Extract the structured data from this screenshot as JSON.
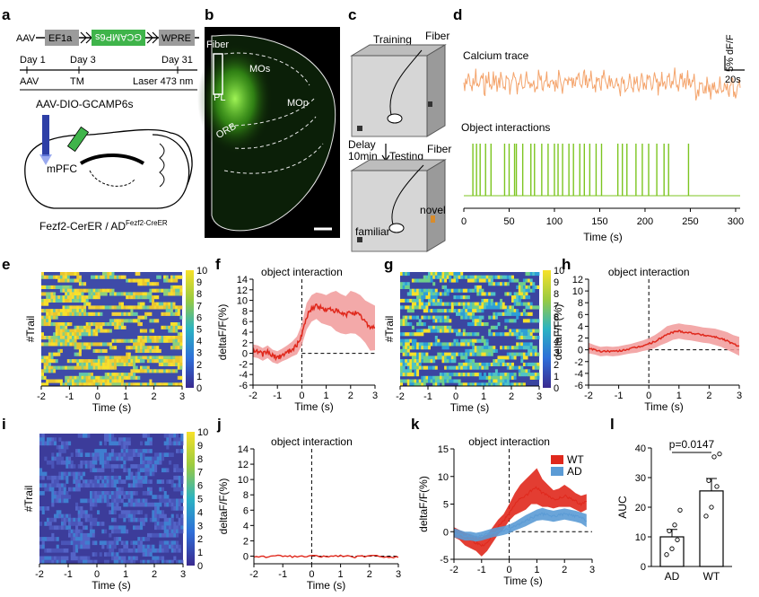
{
  "panels": {
    "a": {
      "label": "a",
      "construct": [
        "EF1a",
        "GCAMP6s",
        "WPRE"
      ],
      "aav_prefix": "AAV",
      "timeline_days": [
        "Day 1",
        "Day 3",
        "Day 31"
      ],
      "timeline_events": [
        "AAV",
        "TM",
        "Laser 473 nm"
      ],
      "virus": "AAV-DIO-GCAMP6s",
      "region": "mPFC",
      "mouse_line": "Fezf2-CerER / AD",
      "mouse_line_sup": "Fezf2-CreER"
    },
    "b": {
      "label": "b",
      "regions": [
        "Fiber",
        "MOs",
        "MOp",
        "PL",
        "ORB"
      ]
    },
    "c": {
      "label": "c",
      "training": "Training",
      "fiber": "Fiber",
      "delay": "Delay",
      "delay2": "10min",
      "testing": "Testing",
      "familiar": "familiar",
      "novel": "novel"
    },
    "d": {
      "label": "d",
      "calcium_title": "Calcium trace",
      "interaction_title": "Object interactions",
      "scale_y": "5% dF/F",
      "scale_x": "20s",
      "xlabel": "Time (s)",
      "xticks": [
        "0",
        "50",
        "100",
        "150",
        "200",
        "250",
        "300"
      ]
    },
    "e": {
      "label": "e",
      "ylabel": "#Trail",
      "xlabel": "Time (s)",
      "xticks": [
        "-2",
        "-1",
        "0",
        "1",
        "2",
        "3"
      ],
      "cbar": [
        "10",
        "9",
        "8",
        "7",
        "6",
        "5",
        "4",
        "3",
        "2",
        "1",
        "0"
      ]
    },
    "f": {
      "label": "f",
      "title": "object interaction",
      "ylabel": "deltaF/F(%)",
      "xlabel": "Time (s)",
      "xticks": [
        "-2",
        "-1",
        "0",
        "1",
        "2",
        "3"
      ],
      "yticks": [
        "14",
        "12",
        "10",
        "8",
        "6",
        "4",
        "2",
        "0",
        "-2",
        "-4",
        "-6"
      ]
    },
    "g": {
      "label": "g",
      "ylabel": "#Trail",
      "xlabel": "Time (s)",
      "xticks": [
        "-2",
        "-1",
        "0",
        "1",
        "2",
        "3"
      ],
      "cbar": [
        "10",
        "9",
        "8",
        "7",
        "6",
        "5",
        "4",
        "3",
        "2",
        "1",
        "0"
      ]
    },
    "h": {
      "label": "h",
      "title": "object interaction",
      "ylabel": "deltaF/F(%)",
      "xlabel": "Time (s)",
      "xticks": [
        "-2",
        "-1",
        "0",
        "1",
        "2",
        "3"
      ],
      "yticks": [
        "12",
        "10",
        "8",
        "6",
        "4",
        "2",
        "0",
        "-2",
        "-4",
        "-6"
      ]
    },
    "i": {
      "label": "i",
      "ylabel": "#Trail",
      "xlabel": "Time (s)",
      "xticks": [
        "-2",
        "-1",
        "0",
        "1",
        "2",
        "3"
      ],
      "cbar": [
        "10",
        "9",
        "8",
        "7",
        "6",
        "5",
        "4",
        "3",
        "2",
        "1",
        "0"
      ]
    },
    "j": {
      "label": "j",
      "title": "object interaction",
      "ylabel": "deltaF/F(%)",
      "xlabel": "Time (s)",
      "xticks": [
        "-2",
        "-1",
        "0",
        "1",
        "2",
        "3"
      ],
      "yticks": [
        "14",
        "12",
        "10",
        "8",
        "6",
        "4",
        "2",
        "0"
      ]
    },
    "k": {
      "label": "k",
      "title": "object interaction",
      "ylabel": "deltaF/F(%)",
      "xlabel": "Time (s)",
      "xticks": [
        "-2",
        "-1",
        "0",
        "1",
        "2",
        "3"
      ],
      "yticks": [
        "15",
        "10",
        "5",
        "0",
        "-5"
      ],
      "legend": [
        "WT",
        "AD"
      ]
    },
    "l": {
      "label": "l",
      "ylabel": "AUC",
      "pvalue": "p=0.0147",
      "yticks": [
        "40",
        "30",
        "20",
        "10",
        "0"
      ],
      "categories": [
        "AD",
        "WT"
      ]
    }
  },
  "colors": {
    "calcium": "#f4a46c",
    "events": "#7cc520",
    "red": "#e0281c",
    "red_band": "#f19a9a",
    "blue": "#5b9bd5",
    "brain": "#6dd630"
  },
  "chart_data": [
    {
      "panel": "d-events",
      "type": "line",
      "xlabel": "Time (s)",
      "xlim": [
        0,
        305
      ],
      "event_times_s": [
        10,
        14,
        18,
        24,
        30,
        45,
        50,
        56,
        58,
        65,
        74,
        78,
        86,
        93,
        100,
        104,
        109,
        116,
        121,
        128,
        133,
        139,
        146,
        152,
        170,
        175,
        180,
        190,
        197,
        204,
        213,
        221,
        226,
        248
      ]
    },
    {
      "panel": "f",
      "type": "line",
      "title": "object interaction",
      "xlabel": "Time (s)",
      "ylabel": "deltaF/F(%)",
      "xlim": [
        -2,
        3
      ],
      "ylim": [
        -6,
        14
      ],
      "x": [
        -2,
        -1.8,
        -1.6,
        -1.4,
        -1.2,
        -1.0,
        -0.8,
        -0.6,
        -0.4,
        -0.2,
        0,
        0.2,
        0.4,
        0.6,
        0.8,
        1.0,
        1.2,
        1.4,
        1.6,
        1.8,
        2.0,
        2.2,
        2.4,
        2.6,
        2.8,
        3.0
      ],
      "series": [
        {
          "mean": [
            0.5,
            0.3,
            -0.2,
            0.3,
            -0.5,
            -0.8,
            -0.3,
            0.2,
            0.8,
            1.5,
            3.5,
            7.0,
            8.5,
            9.0,
            8.5,
            8.2,
            8.3,
            8.0,
            7.5,
            7.2,
            7.8,
            7.6,
            7.0,
            6.0,
            5.0,
            4.8
          ],
          "upper": [
            1.7,
            1.5,
            1.0,
            1.5,
            0.7,
            0.4,
            0.9,
            1.5,
            2.2,
            3.2,
            5.5,
            9.5,
            11.0,
            11.5,
            11.3,
            11.0,
            11.5,
            11.8,
            11.2,
            10.8,
            11.8,
            11.5,
            11.0,
            10.0,
            9.5,
            9.0
          ],
          "lower": [
            -0.7,
            -0.9,
            -1.4,
            -0.9,
            -1.7,
            -2.0,
            -1.5,
            -1.1,
            -0.6,
            -0.2,
            1.5,
            4.5,
            6.0,
            6.5,
            5.7,
            5.4,
            5.1,
            4.2,
            3.8,
            3.6,
            3.8,
            3.7,
            3.0,
            2.0,
            0.5,
            0.6
          ]
        }
      ]
    },
    {
      "panel": "h",
      "type": "line",
      "title": "object interaction",
      "xlabel": "Time (s)",
      "ylabel": "deltaF/F(%)",
      "xlim": [
        -2,
        3
      ],
      "ylim": [
        -6,
        12
      ],
      "x": [
        -2,
        -1.8,
        -1.6,
        -1.4,
        -1.2,
        -1.0,
        -0.8,
        -0.6,
        -0.4,
        -0.2,
        0,
        0.2,
        0.4,
        0.6,
        0.8,
        1.0,
        1.2,
        1.4,
        1.6,
        1.8,
        2.0,
        2.2,
        2.4,
        2.6,
        2.8,
        3.0
      ],
      "series": [
        {
          "mean": [
            0.3,
            0.0,
            -0.3,
            -0.2,
            -0.3,
            -0.2,
            0.0,
            0.2,
            0.4,
            0.7,
            1.0,
            1.4,
            2.0,
            2.6,
            3.0,
            3.2,
            3.0,
            2.9,
            2.7,
            2.5,
            2.4,
            2.2,
            1.9,
            1.5,
            1.0,
            0.6
          ],
          "upper": [
            1.2,
            0.8,
            0.5,
            0.6,
            0.5,
            0.6,
            0.8,
            1.0,
            1.3,
            1.6,
            2.0,
            2.5,
            3.2,
            4.0,
            4.3,
            4.5,
            4.3,
            4.2,
            4.0,
            3.8,
            3.7,
            3.6,
            3.3,
            3.0,
            2.5,
            2.2
          ],
          "lower": [
            -0.6,
            -0.8,
            -1.1,
            -1.0,
            -1.1,
            -1.0,
            -0.8,
            -0.6,
            -0.5,
            -0.2,
            0.0,
            0.3,
            0.8,
            1.2,
            1.7,
            1.9,
            1.7,
            1.6,
            1.4,
            1.2,
            1.1,
            0.8,
            0.5,
            0.0,
            -0.5,
            -1.0
          ]
        }
      ]
    },
    {
      "panel": "j",
      "type": "line",
      "title": "object interaction",
      "xlabel": "Time (s)",
      "ylabel": "deltaF/F(%)",
      "xlim": [
        -2,
        3
      ],
      "ylim": [
        -1,
        14
      ],
      "x": [
        -2,
        -1.5,
        -1,
        -0.5,
        0,
        0.5,
        1,
        1.5,
        2,
        2.5,
        3
      ],
      "series": [
        {
          "mean": [
            0.0,
            -0.1,
            0.05,
            -0.1,
            0.0,
            -0.05,
            0.05,
            -0.1,
            0.0,
            -0.05,
            -0.15
          ]
        }
      ]
    },
    {
      "panel": "k",
      "type": "line",
      "title": "object interaction",
      "xlabel": "Time (s)",
      "ylabel": "deltaF/F(%)",
      "xlim": [
        -2,
        3
      ],
      "ylim": [
        -5,
        15
      ],
      "x": [
        -2,
        -1.8,
        -1.6,
        -1.4,
        -1.2,
        -1.0,
        -0.8,
        -0.6,
        -0.4,
        -0.2,
        0,
        0.2,
        0.4,
        0.6,
        0.8,
        1.0,
        1.2,
        1.4,
        1.6,
        1.8,
        2.0,
        2.2,
        2.4,
        2.6,
        2.8
      ],
      "series": [
        {
          "name": "WT",
          "mean": [
            0.0,
            -0.5,
            -1.0,
            -1.5,
            -2.0,
            -2.5,
            -2.0,
            -0.5,
            1.0,
            2.0,
            3.5,
            5.0,
            6.0,
            6.5,
            7.5,
            8.0,
            7.0,
            6.5,
            5.8,
            6.0,
            6.5,
            6.0,
            5.5,
            5.0,
            5.5
          ],
          "upper": [
            0.8,
            0.3,
            -0.2,
            -0.5,
            -0.8,
            -1.0,
            -0.5,
            0.8,
            2.2,
            3.2,
            5.0,
            7.0,
            8.5,
            9.5,
            10.5,
            11.5,
            9.5,
            8.5,
            7.5,
            7.8,
            8.5,
            7.8,
            7.0,
            6.5,
            6.8
          ],
          "lower": [
            -1.0,
            -1.5,
            -2.5,
            -3.0,
            -3.5,
            -4.5,
            -3.5,
            -2.0,
            -0.5,
            0.5,
            2.0,
            3.0,
            3.5,
            4.0,
            5.0,
            5.0,
            4.5,
            4.5,
            4.2,
            4.5,
            4.5,
            4.5,
            4.0,
            3.5,
            4.0
          ]
        },
        {
          "name": "AD",
          "mean": [
            -0.2,
            -0.5,
            -0.8,
            -0.8,
            -1.0,
            -0.8,
            -0.5,
            -0.2,
            0.0,
            0.2,
            0.5,
            1.0,
            1.5,
            2.0,
            2.5,
            3.0,
            3.2,
            3.0,
            2.8,
            3.0,
            3.2,
            3.0,
            2.8,
            2.5,
            2.0
          ],
          "upper": [
            0.6,
            0.3,
            0.0,
            0.0,
            -0.2,
            0.0,
            0.3,
            0.6,
            0.8,
            1.0,
            1.3,
            1.8,
            2.4,
            3.0,
            3.5,
            4.0,
            4.3,
            4.0,
            3.8,
            4.0,
            4.2,
            4.0,
            3.8,
            3.5,
            3.2
          ],
          "lower": [
            -1.0,
            -1.3,
            -1.6,
            -1.6,
            -1.8,
            -1.6,
            -1.3,
            -1.0,
            -0.8,
            -0.6,
            -0.3,
            0.2,
            0.6,
            1.0,
            1.5,
            2.0,
            2.1,
            2.0,
            1.8,
            2.0,
            2.2,
            2.0,
            1.8,
            1.5,
            0.8
          ]
        }
      ]
    },
    {
      "panel": "l",
      "type": "bar",
      "ylabel": "AUC",
      "ylim": [
        0,
        40
      ],
      "categories": [
        "AD",
        "WT"
      ],
      "values": [
        10,
        25.5
      ],
      "sem": [
        2.5,
        4.2
      ],
      "points": [
        [
          4,
          6,
          9,
          12,
          14,
          19
        ],
        [
          17,
          20,
          27,
          29,
          37,
          38
        ]
      ],
      "annotation": "p=0.0147"
    }
  ]
}
